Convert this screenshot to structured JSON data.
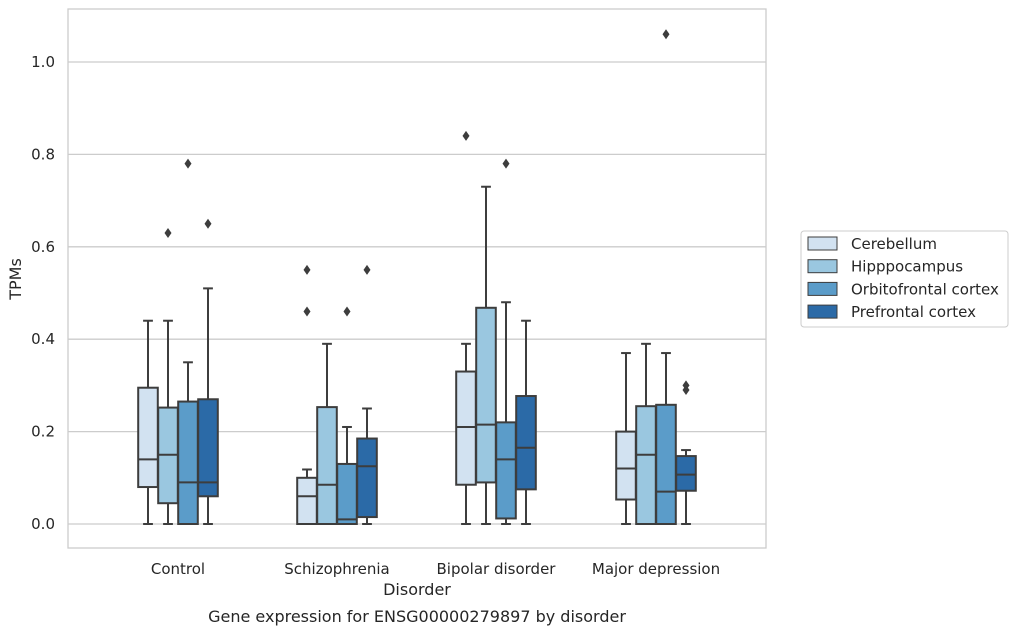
{
  "chart_data": {
    "type": "box",
    "title": "",
    "caption": "Gene expression for ENSG00000279897 by disorder",
    "xlabel": "Disorder",
    "ylabel": "TPMs",
    "ylim": [
      -0.05,
      1.12
    ],
    "yticks": [
      0.0,
      0.2,
      0.4,
      0.6,
      0.8,
      1.0
    ],
    "ytick_labels": [
      "0.0",
      "0.2",
      "0.4",
      "0.6",
      "0.8",
      "1.0"
    ],
    "grid": "horizontal",
    "legend_position": "right",
    "categories": [
      "Control",
      "Schizophrenia",
      "Bipolar disorder",
      "Major depression"
    ],
    "series": [
      {
        "name": "Cerebellum",
        "color": "#d2e2f1",
        "boxes": [
          {
            "whislo": 0.0,
            "q1": 0.08,
            "med": 0.14,
            "q3": 0.295,
            "whishi": 0.44,
            "fliers": []
          },
          {
            "whislo": 0.0,
            "q1": 0.0,
            "med": 0.06,
            "q3": 0.1,
            "whishi": 0.118,
            "fliers": [
              0.46,
              0.55
            ]
          },
          {
            "whislo": 0.0,
            "q1": 0.085,
            "med": 0.21,
            "q3": 0.33,
            "whishi": 0.39,
            "fliers": [
              0.84
            ]
          },
          {
            "whislo": 0.0,
            "q1": 0.053,
            "med": 0.12,
            "q3": 0.2,
            "whishi": 0.37,
            "fliers": []
          }
        ]
      },
      {
        "name": "Hipppocampus",
        "color": "#9ac7e0",
        "boxes": [
          {
            "whislo": 0.0,
            "q1": 0.045,
            "med": 0.15,
            "q3": 0.252,
            "whishi": 0.44,
            "fliers": [
              0.63
            ]
          },
          {
            "whislo": 0.0,
            "q1": 0.0,
            "med": 0.085,
            "q3": 0.253,
            "whishi": 0.39,
            "fliers": []
          },
          {
            "whislo": 0.0,
            "q1": 0.09,
            "med": 0.215,
            "q3": 0.468,
            "whishi": 0.73,
            "fliers": []
          },
          {
            "whislo": 0.0,
            "q1": 0.0,
            "med": 0.15,
            "q3": 0.255,
            "whishi": 0.39,
            "fliers": []
          }
        ]
      },
      {
        "name": "Orbitofrontal cortex",
        "color": "#5b9cc9",
        "boxes": [
          {
            "whislo": 0.0,
            "q1": 0.0,
            "med": 0.09,
            "q3": 0.265,
            "whishi": 0.35,
            "fliers": [
              0.78
            ]
          },
          {
            "whislo": 0.0,
            "q1": 0.0,
            "med": 0.01,
            "q3": 0.13,
            "whishi": 0.21,
            "fliers": [
              0.46
            ]
          },
          {
            "whislo": 0.0,
            "q1": 0.012,
            "med": 0.14,
            "q3": 0.22,
            "whishi": 0.48,
            "fliers": [
              0.78
            ]
          },
          {
            "whislo": 0.0,
            "q1": 0.0,
            "med": 0.07,
            "q3": 0.258,
            "whishi": 0.37,
            "fliers": [
              1.06
            ]
          }
        ]
      },
      {
        "name": "Prefrontal cortex",
        "color": "#2b6aa7",
        "boxes": [
          {
            "whislo": 0.0,
            "q1": 0.06,
            "med": 0.09,
            "q3": 0.27,
            "whishi": 0.51,
            "fliers": [
              0.65
            ]
          },
          {
            "whislo": 0.0,
            "q1": 0.015,
            "med": 0.125,
            "q3": 0.185,
            "whishi": 0.25,
            "fliers": [
              0.55
            ]
          },
          {
            "whislo": 0.0,
            "q1": 0.075,
            "med": 0.165,
            "q3": 0.277,
            "whishi": 0.44,
            "fliers": []
          },
          {
            "whislo": 0.0,
            "q1": 0.072,
            "med": 0.107,
            "q3": 0.147,
            "whishi": 0.16,
            "fliers": [
              0.29,
              0.3
            ]
          }
        ]
      }
    ]
  },
  "colors": {
    "line": "#3d3d3d",
    "grid": "#cccccc",
    "frame": "#cccccc"
  }
}
